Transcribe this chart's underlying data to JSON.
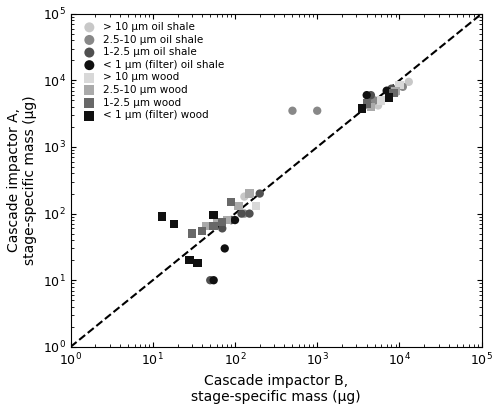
{
  "title": "",
  "xlabel": "Cascade impactor B,\nstage-specific mass (μg)",
  "ylabel": "Cascade impactor A,\nstage-specific mass (μg)",
  "xlim": [
    1,
    100000
  ],
  "ylim": [
    1,
    100000
  ],
  "series": [
    {
      "label": "> 10 μm oil shale",
      "marker": "o",
      "color": "#c8c8c8",
      "x": [
        130,
        5500,
        9000,
        13000
      ],
      "y": [
        180,
        4200,
        6500,
        9500
      ]
    },
    {
      "label": "2.5-10 μm oil shale",
      "marker": "o",
      "color": "#888888",
      "x": [
        90,
        130,
        500,
        1000,
        5000,
        8000,
        11000
      ],
      "y": [
        80,
        100,
        3500,
        3500,
        5000,
        7000,
        8000
      ]
    },
    {
      "label": "1-2.5 μm oil shale",
      "marker": "o",
      "color": "#505050",
      "x": [
        50,
        70,
        90,
        120,
        150,
        200,
        4500,
        8000
      ],
      "y": [
        10,
        60,
        80,
        100,
        100,
        200,
        6000,
        7500
      ]
    },
    {
      "label": "< 1 μm (filter) oil shale",
      "marker": "o",
      "color": "#101010",
      "x": [
        55,
        75,
        100,
        4000,
        7000
      ],
      "y": [
        10,
        30,
        80,
        6000,
        7000
      ]
    },
    {
      "label": "> 10 μm wood",
      "marker": "s",
      "color": "#d8d8d8",
      "x": [
        180,
        6000,
        10000
      ],
      "y": [
        130,
        5000,
        8500
      ]
    },
    {
      "label": "2.5-10 μm wood",
      "marker": "s",
      "color": "#aaaaaa",
      "x": [
        45,
        60,
        80,
        110,
        150,
        4500,
        9000
      ],
      "y": [
        65,
        75,
        80,
        130,
        200,
        4000,
        7000
      ]
    },
    {
      "label": "1-2.5 μm wood",
      "marker": "s",
      "color": "#686868",
      "x": [
        30,
        40,
        55,
        70,
        90,
        4000,
        8500
      ],
      "y": [
        50,
        55,
        65,
        75,
        150,
        4500,
        6500
      ]
    },
    {
      "label": "< 1 μm (filter) wood",
      "marker": "s",
      "color": "#101010",
      "x": [
        13,
        18,
        28,
        35,
        55,
        3500,
        7500
      ],
      "y": [
        90,
        70,
        20,
        18,
        95,
        3800,
        5500
      ]
    }
  ],
  "dashed_line": [
    1,
    100000
  ],
  "marker_size": 6,
  "background_color": "#ffffff",
  "legend_fontsize": 7.5,
  "axis_fontsize": 10
}
